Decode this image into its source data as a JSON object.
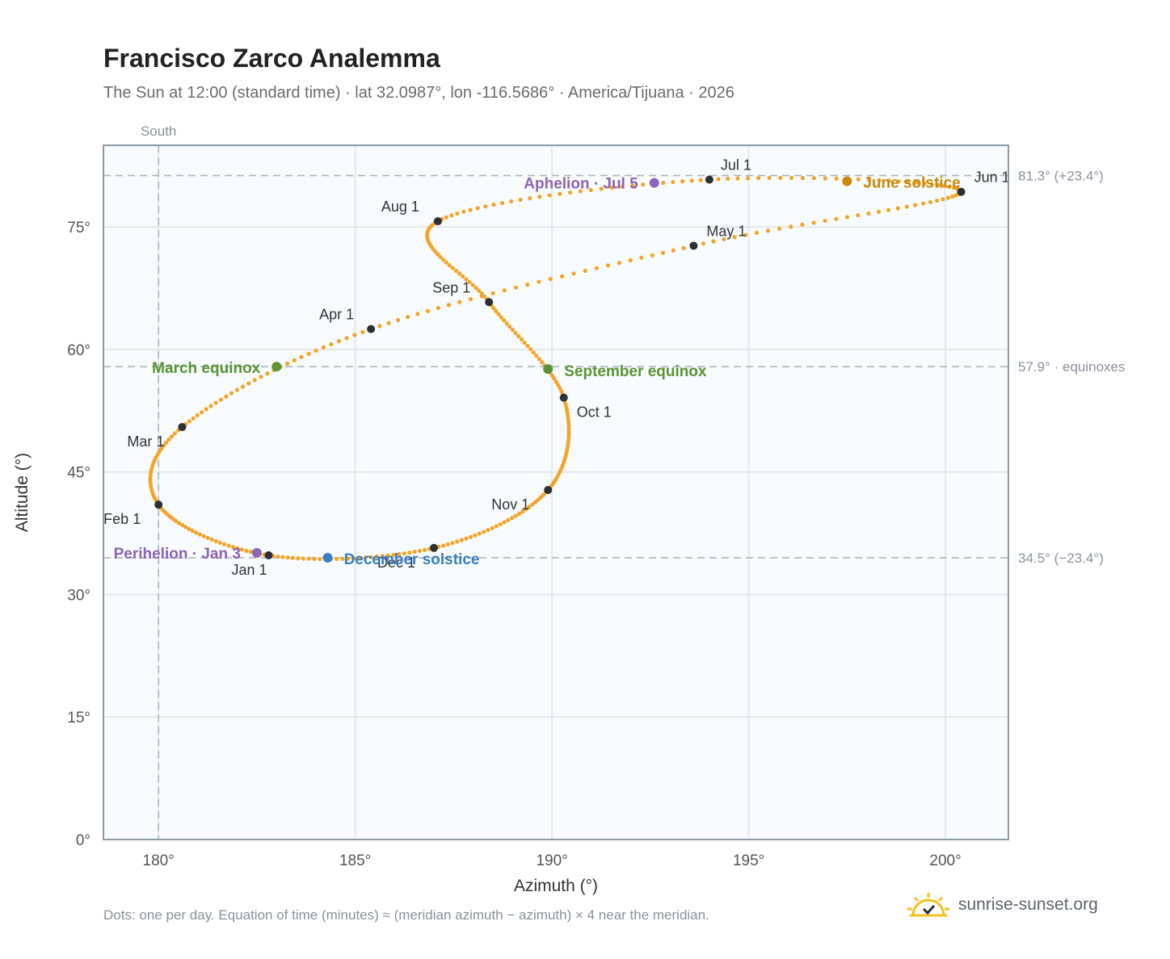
{
  "title": "Francisco Zarco Analemma",
  "subtitle": "The Sun at 12:00 (standard time) · lat 32.0987°, lon -116.5686° · America/Tijuana · 2026",
  "footnote": "Dots: one per day. Equation of time (minutes) ≈ (meridian azimuth − azimuth) × 4 near the meridian.",
  "brand": {
    "text": "sunrise-sunset.org",
    "icon": "sun-logo-icon"
  },
  "colors": {
    "path": "#f2a52a",
    "month": "#2b2f36",
    "equinox": "#5a9435",
    "june_solstice": "#c98a0c",
    "december_solstice": "#3a7ebf",
    "apsis": "#8e64b6",
    "plot_bg": "#f8fbfd",
    "grid": "#e3e8ec",
    "ref_line": "#aeb6c0",
    "axis": "#8e99a8"
  },
  "chart_data": {
    "type": "scatter",
    "title": "Francisco Zarco Analemma",
    "xlabel": "Azimuth (°)",
    "ylabel": "Altitude (°)",
    "xlim": [
      178.6,
      201.6
    ],
    "ylim": [
      0,
      85
    ],
    "xticks": [
      180,
      185,
      190,
      195,
      200
    ],
    "xtick_labels": [
      "180°",
      "185°",
      "190°",
      "195°",
      "200°"
    ],
    "yticks": [
      0,
      15,
      30,
      45,
      60,
      75
    ],
    "ytick_labels": [
      "0°",
      "15°",
      "30°",
      "45°",
      "60°",
      "75°"
    ],
    "grid": true,
    "meridian": {
      "azimuth": 180,
      "label": "South"
    },
    "reference_lines": [
      {
        "altitude": 81.3,
        "label": "81.3° (+23.4°)"
      },
      {
        "altitude": 57.9,
        "label": "57.9° · equinoxes"
      },
      {
        "altitude": 34.5,
        "label": "34.5° (−23.4°)"
      }
    ],
    "month_markers": [
      {
        "label": "Jan 1",
        "az": 182.8,
        "alt": 34.8
      },
      {
        "label": "Feb 1",
        "az": 180.0,
        "alt": 41.0
      },
      {
        "label": "Mar 1",
        "az": 180.6,
        "alt": 50.5
      },
      {
        "label": "Apr 1",
        "az": 185.4,
        "alt": 62.5
      },
      {
        "label": "May 1",
        "az": 193.6,
        "alt": 72.7
      },
      {
        "label": "Jun 1",
        "az": 200.4,
        "alt": 79.3
      },
      {
        "label": "Jul 1",
        "az": 194.0,
        "alt": 80.8
      },
      {
        "label": "Aug 1",
        "az": 187.1,
        "alt": 75.7
      },
      {
        "label": "Sep 1",
        "az": 188.4,
        "alt": 65.8
      },
      {
        "label": "Oct 1",
        "az": 190.3,
        "alt": 54.1
      },
      {
        "label": "Nov 1",
        "az": 189.9,
        "alt": 42.8
      },
      {
        "label": "Dec 1",
        "az": 187.0,
        "alt": 35.7
      }
    ],
    "events": [
      {
        "label": "March equinox",
        "kind": "equinox",
        "az": 183.0,
        "alt": 57.9
      },
      {
        "label": "June solstice",
        "kind": "june_solstice",
        "az": 197.5,
        "alt": 80.6
      },
      {
        "label": "September equinox",
        "kind": "equinox",
        "az": 189.9,
        "alt": 57.6
      },
      {
        "label": "December solstice",
        "kind": "december_solstice",
        "az": 184.3,
        "alt": 34.5
      },
      {
        "label": "Perihelion · Jan 3",
        "kind": "apsis",
        "az": 182.5,
        "alt": 35.1
      },
      {
        "label": "Aphelion · Jul 5",
        "kind": "apsis",
        "az": 192.6,
        "alt": 80.4
      }
    ]
  }
}
